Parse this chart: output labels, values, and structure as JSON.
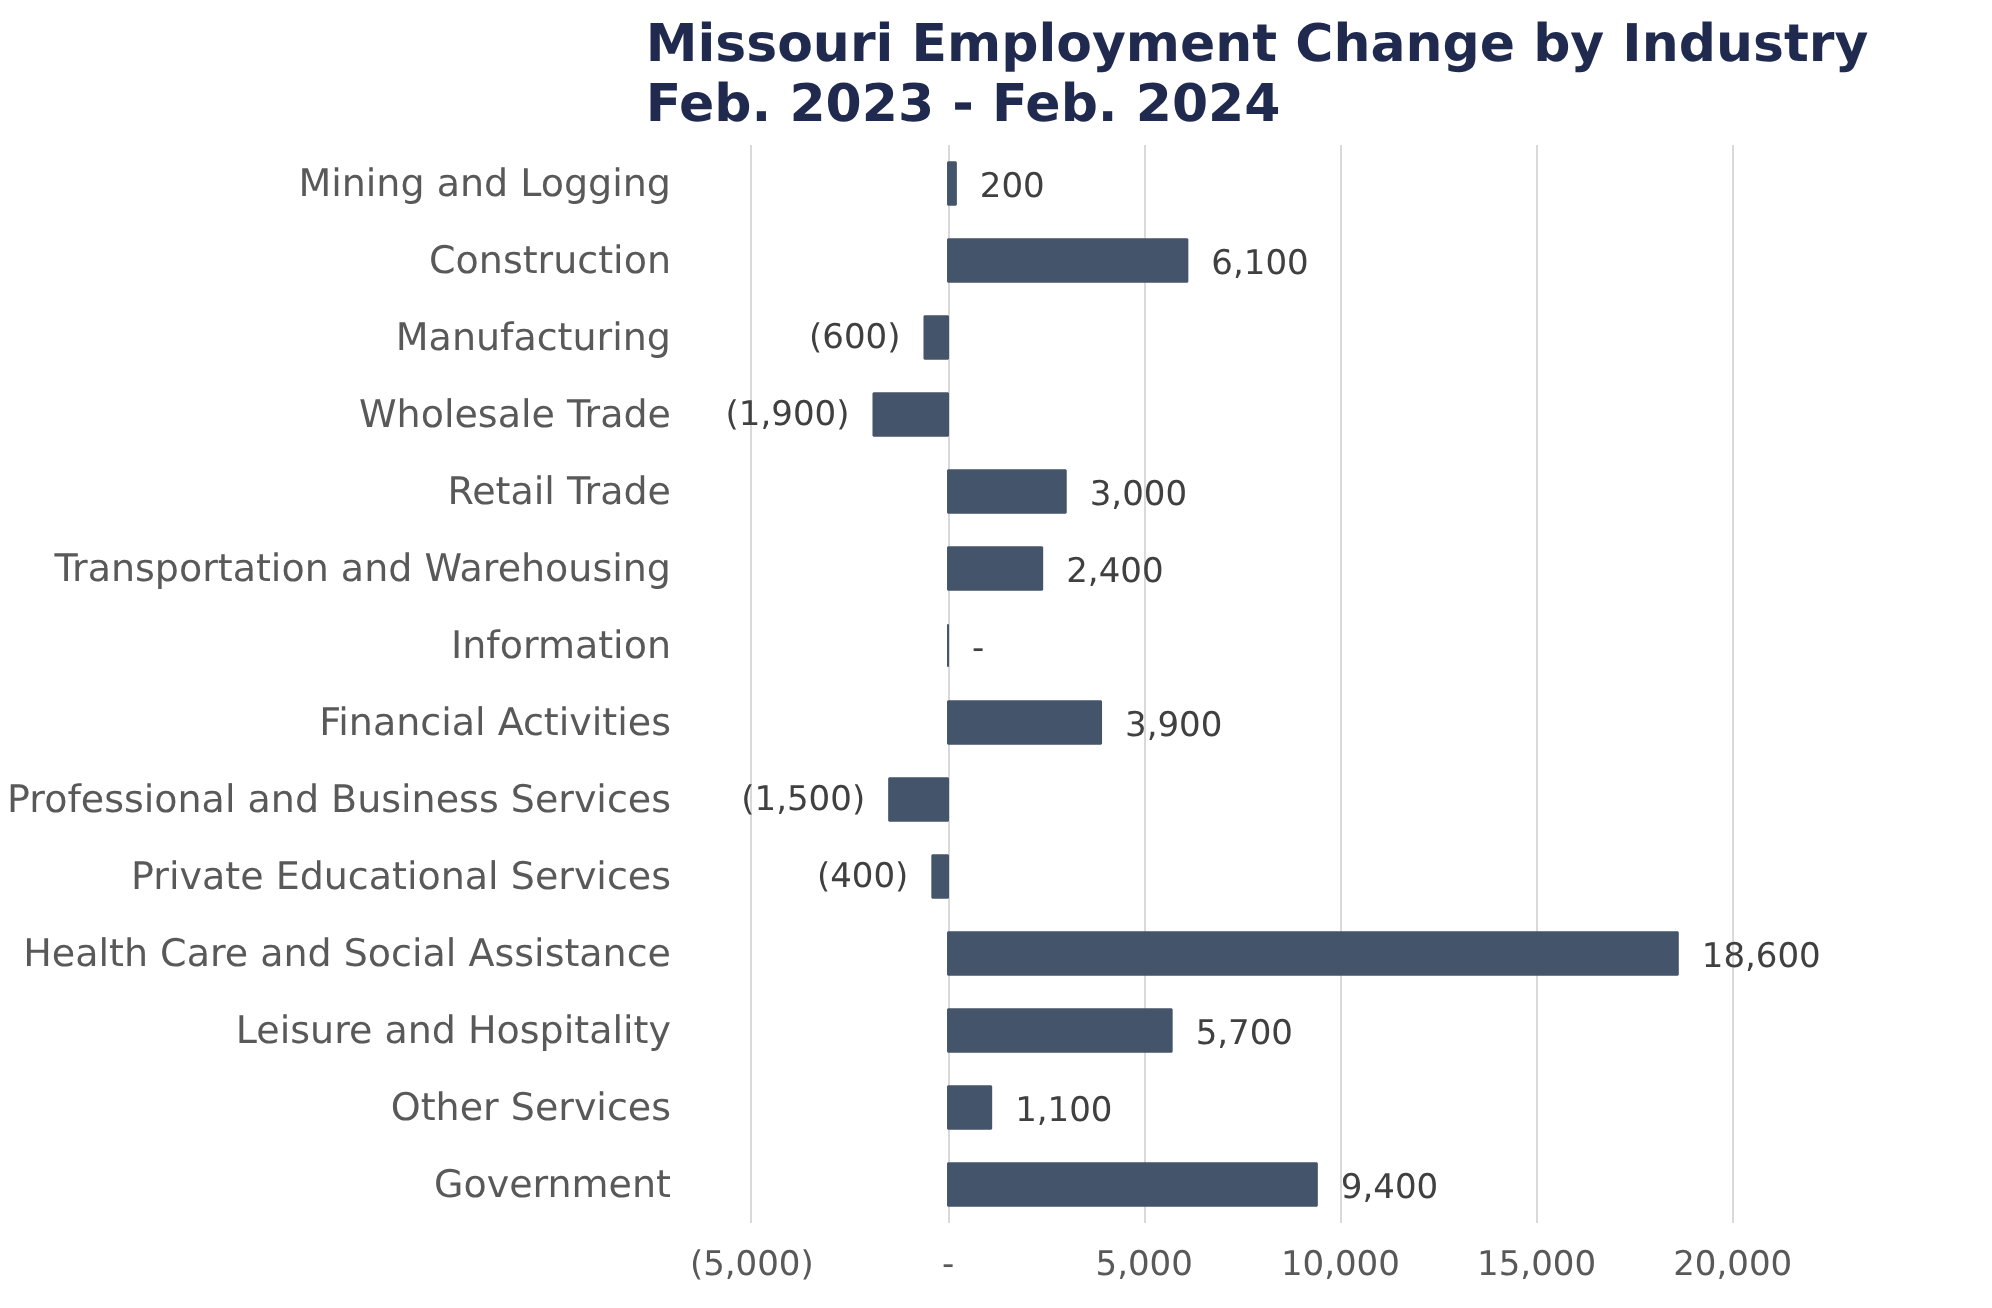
{
  "chart_data": {
    "type": "bar",
    "orientation": "horizontal",
    "title": "Missouri Employment Change by Industry\nFeb. 2023 - Feb. 2024",
    "categories": [
      "Mining and Logging",
      "Construction",
      "Manufacturing",
      "Wholesale Trade",
      "Retail Trade",
      "Transportation and Warehousing",
      "Information",
      "Financial Activities",
      "Professional and Business Services",
      "Private Educational Services",
      "Health Care and Social Assistance",
      "Leisure and Hospitality",
      "Other Services",
      "Government"
    ],
    "values": [
      200,
      6100,
      -600,
      -1900,
      3000,
      2400,
      0,
      3900,
      -1500,
      -400,
      18600,
      5700,
      1100,
      9400
    ],
    "value_labels": [
      "200",
      "6,100",
      "(600)",
      "(1,900)",
      "3,000",
      "2,400",
      "-",
      "3,900",
      "(1,500)",
      "(400)",
      "18,600",
      "5,700",
      "1,100",
      "9,400"
    ],
    "color": "#44546a",
    "xlim": [
      -5000,
      20000
    ],
    "xticks": [
      {
        "value": -5000,
        "label": "(5,000)"
      },
      {
        "value": 0,
        "label": "-"
      },
      {
        "value": 5000,
        "label": "5,000"
      },
      {
        "value": 10000,
        "label": "10,000"
      },
      {
        "value": 15000,
        "label": "15,000"
      },
      {
        "value": 20000,
        "label": "20,000"
      }
    ],
    "grid": "x"
  }
}
